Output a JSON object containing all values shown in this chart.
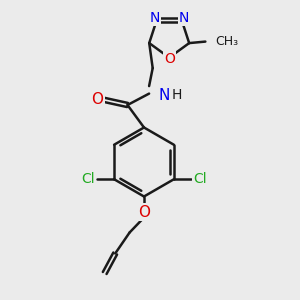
{
  "bg_color": "#ebebeb",
  "bond_color": "#1a1a1a",
  "bond_width": 1.8,
  "atom_colors": {
    "C": "#1a1a1a",
    "N": "#0000ee",
    "O": "#dd0000",
    "Cl": "#22aa22",
    "H": "#555555"
  },
  "font_size": 10,
  "dbo": 0.09
}
